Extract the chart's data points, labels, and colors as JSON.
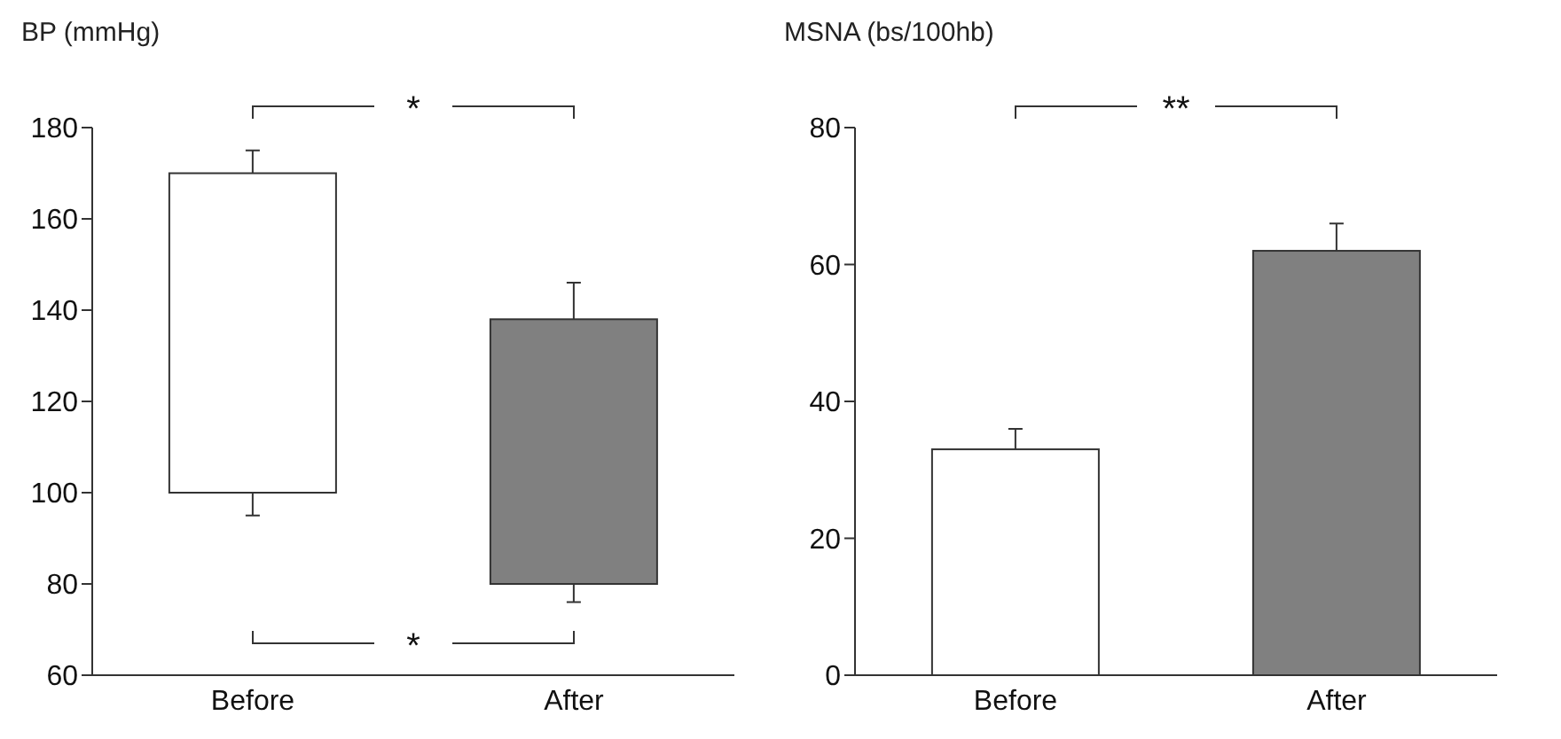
{
  "chart_data": [
    {
      "type": "bar",
      "ylabel": "BP (mmHg)",
      "categories": [
        "Before",
        "After"
      ],
      "values": [
        70,
        58
      ],
      "base": [
        100,
        80
      ],
      "colors": [
        "#ffffff",
        "#808080"
      ],
      "errors": [
        [
          95,
          175
        ],
        [
          76,
          146
        ]
      ],
      "ylim": [
        60,
        180
      ],
      "yticks": [
        60,
        80,
        100,
        120,
        140,
        160,
        180
      ],
      "annotations": [
        "*",
        "*"
      ]
    },
    {
      "type": "bar",
      "ylabel": "MSNA (bs/100hb)",
      "categories": [
        "Before",
        "After"
      ],
      "values": [
        33,
        62
      ],
      "colors": [
        "#ffffff",
        "#808080"
      ],
      "errors": [
        3,
        4
      ],
      "ylim": [
        0,
        80
      ],
      "yticks": [
        0,
        20,
        40,
        60,
        80
      ],
      "annotations": [
        "**"
      ]
    }
  ]
}
